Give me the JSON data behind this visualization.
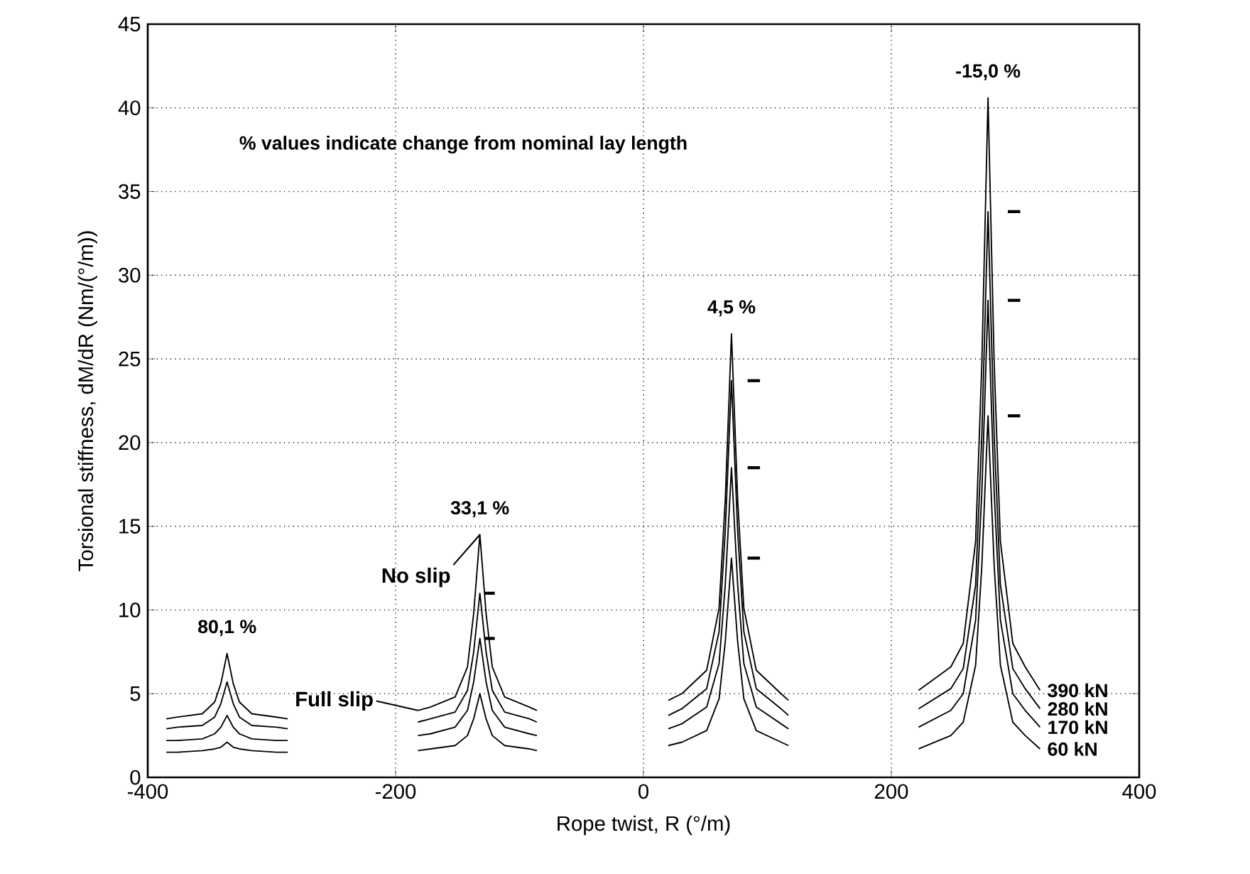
{
  "chart_data": {
    "type": "line",
    "xlabel": "Rope twist,  R  (°/m)",
    "ylabel": "Torsional stiffness,  dM/dR   (Nm/(°/m))",
    "xlim": [
      -400,
      400
    ],
    "xticks": [
      -400,
      -200,
      0,
      200,
      400
    ],
    "ylim": [
      0,
      45
    ],
    "yticks": [
      0,
      5,
      10,
      15,
      20,
      25,
      30,
      35,
      40,
      45
    ],
    "grid": true,
    "line_style": "solid",
    "series": [
      {
        "name": "390 kN",
        "color": "#000000",
        "x": [
          -385,
          -376,
          -356,
          -346,
          -341,
          -336,
          -331,
          -326,
          -316,
          -296,
          -287,
          null,
          -182,
          -172,
          -152,
          -142,
          -137,
          -132,
          -127,
          -122,
          -112,
          -92,
          -86,
          null,
          20,
          31,
          51,
          61,
          66,
          71,
          76,
          81,
          91,
          111,
          117,
          null,
          222,
          248,
          258,
          268,
          273,
          278,
          283,
          288,
          298,
          308,
          320
        ],
        "values": [
          3.5,
          3.6,
          3.8,
          4.5,
          5.6,
          7.4,
          5.6,
          4.5,
          3.8,
          3.6,
          3.5,
          null,
          4.0,
          4.2,
          4.8,
          6.6,
          9.8,
          14.5,
          9.8,
          6.6,
          4.8,
          4.2,
          4.0,
          null,
          4.6,
          5.0,
          6.4,
          10.1,
          16.6,
          26.5,
          16.6,
          10.1,
          6.4,
          5.0,
          4.6,
          null,
          5.2,
          6.6,
          8.0,
          14.1,
          24.7,
          40.6,
          24.7,
          14.1,
          8.0,
          6.6,
          5.2
        ]
      },
      {
        "name": "280 kN",
        "color": "#000000",
        "x": [
          -385,
          -376,
          -356,
          -346,
          -341,
          -336,
          -331,
          -326,
          -316,
          -296,
          -287,
          null,
          -182,
          -172,
          -152,
          -142,
          -137,
          -132,
          -127,
          -122,
          -112,
          -92,
          -86,
          null,
          20,
          31,
          51,
          61,
          66,
          71,
          76,
          81,
          91,
          111,
          117,
          null,
          222,
          248,
          258,
          268,
          273,
          278,
          283,
          288,
          298,
          308,
          320
        ],
        "values": [
          2.9,
          3.0,
          3.1,
          3.6,
          4.4,
          5.7,
          4.4,
          3.6,
          3.1,
          3.0,
          2.9,
          null,
          3.3,
          3.5,
          3.9,
          5.2,
          7.5,
          11.0,
          7.5,
          5.2,
          3.9,
          3.5,
          3.3,
          null,
          3.7,
          4.1,
          5.3,
          8.7,
          14.7,
          23.7,
          14.7,
          8.7,
          5.3,
          4.1,
          3.7,
          null,
          4.1,
          5.3,
          6.5,
          11.5,
          20.4,
          33.8,
          20.4,
          11.5,
          6.5,
          5.3,
          4.1
        ]
      },
      {
        "name": "170 kN",
        "color": "#000000",
        "x": [
          -385,
          -376,
          -356,
          -346,
          -341,
          -336,
          -331,
          -326,
          -316,
          -296,
          -287,
          null,
          -182,
          -172,
          -152,
          -142,
          -137,
          -132,
          -127,
          -122,
          -112,
          -92,
          -86,
          null,
          20,
          31,
          51,
          61,
          66,
          71,
          76,
          81,
          91,
          111,
          117,
          null,
          222,
          248,
          258,
          268,
          273,
          278,
          283,
          288,
          298,
          308,
          320
        ],
        "values": [
          2.2,
          2.2,
          2.3,
          2.6,
          3.0,
          3.7,
          3.0,
          2.6,
          2.3,
          2.2,
          2.2,
          null,
          2.5,
          2.6,
          3.0,
          4.0,
          5.7,
          8.3,
          5.7,
          4.0,
          3.0,
          2.6,
          2.5,
          null,
          2.9,
          3.2,
          4.2,
          6.8,
          11.5,
          18.5,
          11.5,
          6.8,
          4.2,
          3.2,
          2.9,
          null,
          3.0,
          4.0,
          5.0,
          9.4,
          17.0,
          28.5,
          17.0,
          9.4,
          5.0,
          4.0,
          3.0
        ]
      },
      {
        "name": "60 kN",
        "color": "#000000",
        "x": [
          -385,
          -376,
          -356,
          -346,
          -341,
          -336,
          -331,
          -326,
          -316,
          -296,
          -287,
          null,
          -182,
          -172,
          -152,
          -142,
          -137,
          -132,
          -127,
          -122,
          -112,
          -92,
          -86,
          null,
          20,
          31,
          51,
          61,
          66,
          71,
          76,
          81,
          91,
          111,
          117,
          null,
          222,
          248,
          258,
          268,
          273,
          278,
          283,
          288,
          298,
          308,
          320
        ],
        "values": [
          1.5,
          1.5,
          1.6,
          1.7,
          1.8,
          2.1,
          1.8,
          1.7,
          1.6,
          1.5,
          1.5,
          null,
          1.6,
          1.7,
          1.9,
          2.5,
          3.5,
          5.0,
          3.5,
          2.5,
          1.9,
          1.7,
          1.6,
          null,
          1.9,
          2.1,
          2.8,
          4.7,
          8.1,
          13.1,
          8.1,
          4.7,
          2.8,
          2.1,
          1.9,
          null,
          1.7,
          2.5,
          3.3,
          6.7,
          12.6,
          21.6,
          12.6,
          6.7,
          3.3,
          2.5,
          1.7
        ]
      },
      {
        "color": "#000000",
        "x": [
          -128,
          -120
        ],
        "values": [
          11.0,
          11.0
        ]
      },
      {
        "color": "#000000",
        "x": [
          -128,
          -120
        ],
        "values": [
          8.3,
          8.3
        ]
      },
      {
        "color": "#000000",
        "x": [
          84,
          94
        ],
        "values": [
          23.7,
          23.7
        ]
      },
      {
        "color": "#000000",
        "x": [
          84,
          94
        ],
        "values": [
          18.5,
          18.5
        ]
      },
      {
        "color": "#000000",
        "x": [
          84,
          94
        ],
        "values": [
          13.1,
          13.1
        ]
      },
      {
        "color": "#000000",
        "x": [
          294,
          304
        ],
        "values": [
          33.8,
          33.8
        ]
      },
      {
        "color": "#000000",
        "x": [
          294,
          304
        ],
        "values": [
          28.5,
          28.5
        ]
      },
      {
        "color": "#000000",
        "x": [
          294,
          304
        ],
        "values": [
          21.6,
          21.6
        ]
      }
    ],
    "annotations": [
      "% values indicate change from nominal lay length",
      {
        "text": "80,1 %",
        "x": -336,
        "y": 7.4
      },
      {
        "text": "33,1 %",
        "x": -132,
        "y": 14.5
      },
      {
        "text": "4,5 %",
        "x": 71,
        "y": 26.5
      },
      {
        "text": "-15,0 %",
        "x": 278,
        "y": 40.6
      },
      {
        "text": "No slip",
        "x": -132,
        "y": 14.5
      },
      {
        "text": "Full slip",
        "x": -182,
        "y": 4.0
      }
    ]
  }
}
